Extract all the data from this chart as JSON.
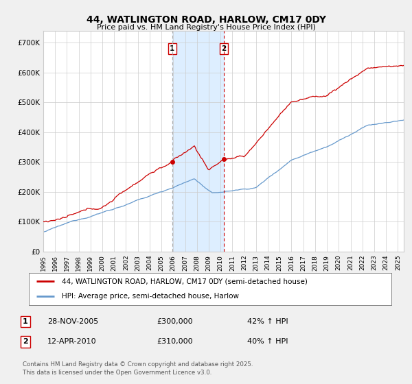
{
  "title": "44, WATLINGTON ROAD, HARLOW, CM17 0DY",
  "subtitle": "Price paid vs. HM Land Registry's House Price Index (HPI)",
  "ylabel_ticks": [
    "£0",
    "£100K",
    "£200K",
    "£300K",
    "£400K",
    "£500K",
    "£600K",
    "£700K"
  ],
  "ytick_values": [
    0,
    100000,
    200000,
    300000,
    400000,
    500000,
    600000,
    700000
  ],
  "ylim": [
    0,
    740000
  ],
  "sale1_x": 2005.91,
  "sale2_x": 2010.28,
  "sale1_price": 300000,
  "sale2_price": 310000,
  "line1_label": "44, WATLINGTON ROAD, HARLOW, CM17 0DY (semi-detached house)",
  "line2_label": "HPI: Average price, semi-detached house, Harlow",
  "line1_color": "#cc0000",
  "line2_color": "#6699cc",
  "shade_color": "#ddeeff",
  "footer": "Contains HM Land Registry data © Crown copyright and database right 2025.\nThis data is licensed under the Open Government Licence v3.0.",
  "bg_color": "#f0f0f0",
  "plot_bg": "#ffffff",
  "grid_color": "#cccccc",
  "ann_date1": "28-NOV-2005",
  "ann_price1": "£300,000",
  "ann_hpi1": "42% ↑ HPI",
  "ann_date2": "12-APR-2010",
  "ann_price2": "£310,000",
  "ann_hpi2": "40% ↑ HPI"
}
